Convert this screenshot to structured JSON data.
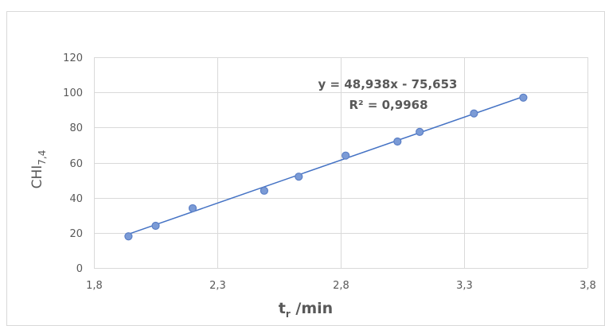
{
  "chart_data": {
    "type": "scatter",
    "title": "",
    "xlabel_main": "t",
    "xlabel_sub": "r",
    "xlabel_rest": " /min",
    "ylabel_main": "CHI",
    "ylabel_sub": "7,4",
    "xlim": [
      1.8,
      3.8
    ],
    "ylim": [
      0,
      120
    ],
    "x_ticks": [
      1.8,
      2.3,
      2.8,
      3.3,
      3.8
    ],
    "x_tick_labels": [
      "1,8",
      "2,3",
      "2,8",
      "3,3",
      "3,8"
    ],
    "y_ticks": [
      0,
      20,
      40,
      60,
      80,
      100,
      120
    ],
    "y_tick_labels": [
      "0",
      "20",
      "40",
      "60",
      "80",
      "100",
      "120"
    ],
    "grid": true,
    "legend": "none",
    "series": [
      {
        "points": [
          {
            "x": 1.94,
            "y": 18
          },
          {
            "x": 2.05,
            "y": 24
          },
          {
            "x": 2.2,
            "y": 34
          },
          {
            "x": 2.49,
            "y": 44
          },
          {
            "x": 2.63,
            "y": 52
          },
          {
            "x": 2.82,
            "y": 64
          },
          {
            "x": 3.03,
            "y": 72
          },
          {
            "x": 3.12,
            "y": 77.5
          },
          {
            "x": 3.34,
            "y": 88
          },
          {
            "x": 3.54,
            "y": 97
          }
        ],
        "color": "#5b7fc6",
        "marker_fill": "#7b9bd6"
      }
    ],
    "trendline": {
      "slope": 48.938,
      "intercept": -75.653,
      "x_range": [
        1.94,
        3.54
      ],
      "color": "#4472c4",
      "equation_label": "y = 48,938x - 75,653",
      "r2_label": "R² = 0,9968"
    },
    "colors": {
      "grid": "#d9d9d9",
      "axis_text": "#595959",
      "frame": "#d9d9d9"
    }
  }
}
